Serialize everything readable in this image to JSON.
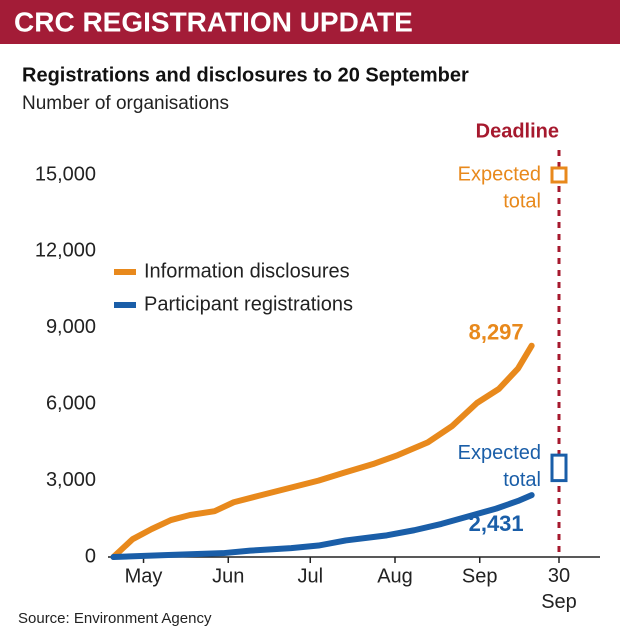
{
  "chart_data": {
    "type": "line",
    "title": "CRC REGISTRATION UPDATE",
    "subtitle": "Registrations and disclosures to 20 September",
    "y_label": "Number of organisations",
    "source": "Source: Environment Agency",
    "ylim": [
      0,
      15500
    ],
    "yticks": [
      0,
      {
        "value": 3000,
        "label": "3,000"
      },
      {
        "value": 6000,
        "label": "6,000"
      },
      {
        "value": 9000,
        "label": "9,000"
      },
      {
        "value": 12000,
        "label": "12,000"
      },
      {
        "value": 15000,
        "label": "15,000"
      }
    ],
    "xlim": [
      108,
      288
    ],
    "xticks": [
      {
        "value": 121,
        "label": "May"
      },
      {
        "value": 152,
        "label": "Jun"
      },
      {
        "value": 182,
        "label": "Jul"
      },
      {
        "value": 213,
        "label": "Aug"
      },
      {
        "value": 244,
        "label": "Sep"
      },
      {
        "value": 273,
        "label": "30 Sep"
      }
    ],
    "legend": "center left",
    "deadline": {
      "label": "Deadline",
      "x": 273,
      "color": "#a6192e"
    },
    "series": [
      {
        "name": "Information disclosures",
        "color": "#e8891c",
        "x": [
          110,
          117,
          124,
          131,
          138,
          147,
          154,
          163,
          174,
          185,
          194,
          205,
          214,
          225,
          234,
          243,
          251,
          258,
          263
        ],
        "values": [
          0,
          700,
          1100,
          1450,
          1650,
          1800,
          2150,
          2400,
          2700,
          3000,
          3300,
          3650,
          4000,
          4500,
          5150,
          6050,
          6600,
          7400,
          8297
        ],
        "value_labels": [
          null,
          null,
          null,
          null,
          null,
          null,
          null,
          null,
          null,
          null,
          null,
          null,
          null,
          null,
          null,
          null,
          null,
          null,
          "8,297"
        ],
        "expected_total": 15000,
        "expected_label": [
          "Expected",
          "total"
        ]
      },
      {
        "name": "Participant registrations",
        "color": "#1a5ea8",
        "x": [
          110,
          130,
          150,
          160,
          175,
          185,
          195,
          210,
          220,
          230,
          240,
          250,
          258,
          263
        ],
        "values": [
          0,
          80,
          150,
          250,
          350,
          450,
          650,
          850,
          1050,
          1300,
          1600,
          1900,
          2200,
          2431
        ],
        "value_labels": [
          null,
          null,
          null,
          null,
          null,
          null,
          null,
          null,
          null,
          null,
          null,
          null,
          null,
          "2,431"
        ],
        "expected_total_range": [
          3000,
          4000
        ],
        "expected_label": [
          "Expected",
          "total"
        ]
      }
    ]
  }
}
